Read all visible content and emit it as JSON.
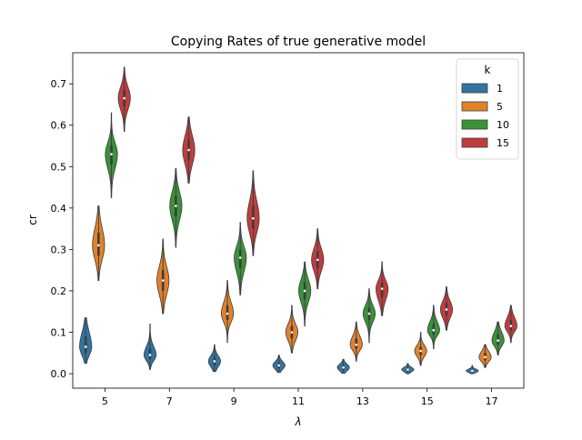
{
  "chart_data": {
    "type": "violin",
    "title": "Copying Rates of true generative model",
    "xlabel": "λ",
    "ylabel": "cr",
    "categories": [
      "5",
      "7",
      "9",
      "11",
      "13",
      "15",
      "17"
    ],
    "yticks": [
      0.0,
      0.1,
      0.2,
      0.3,
      0.4,
      0.5,
      0.6,
      0.7
    ],
    "ytick_labels": [
      "0.0",
      "0.1",
      "0.2",
      "0.3",
      "0.4",
      "0.5",
      "0.6",
      "0.7"
    ],
    "ylim": [
      -0.035,
      0.775
    ],
    "legend": {
      "title": "k",
      "position": "top-right"
    },
    "series": [
      {
        "name": "1",
        "color": "#3274a1",
        "values": [
          {
            "min": 0.025,
            "q1": 0.05,
            "median": 0.065,
            "q3": 0.09,
            "max": 0.135
          },
          {
            "min": 0.01,
            "q1": 0.035,
            "median": 0.045,
            "q3": 0.06,
            "max": 0.12
          },
          {
            "min": 0.005,
            "q1": 0.02,
            "median": 0.03,
            "q3": 0.04,
            "max": 0.07
          },
          {
            "min": 0.003,
            "q1": 0.013,
            "median": 0.02,
            "q3": 0.027,
            "max": 0.045
          },
          {
            "min": 0.001,
            "q1": 0.009,
            "median": 0.015,
            "q3": 0.021,
            "max": 0.035
          },
          {
            "min": 0.0,
            "q1": 0.006,
            "median": 0.01,
            "q3": 0.014,
            "max": 0.025
          },
          {
            "min": 0.0,
            "q1": 0.004,
            "median": 0.007,
            "q3": 0.01,
            "max": 0.02
          }
        ]
      },
      {
        "name": "5",
        "color": "#e1812c",
        "values": [
          {
            "min": 0.225,
            "q1": 0.285,
            "median": 0.31,
            "q3": 0.34,
            "max": 0.405
          },
          {
            "min": 0.145,
            "q1": 0.2,
            "median": 0.225,
            "q3": 0.25,
            "max": 0.325
          },
          {
            "min": 0.075,
            "q1": 0.13,
            "median": 0.145,
            "q3": 0.165,
            "max": 0.225
          },
          {
            "min": 0.05,
            "q1": 0.085,
            "median": 0.1,
            "q3": 0.115,
            "max": 0.165
          },
          {
            "min": 0.03,
            "q1": 0.06,
            "median": 0.07,
            "q3": 0.085,
            "max": 0.125
          },
          {
            "min": 0.02,
            "q1": 0.045,
            "median": 0.055,
            "q3": 0.065,
            "max": 0.1
          },
          {
            "min": 0.015,
            "q1": 0.032,
            "median": 0.04,
            "q3": 0.05,
            "max": 0.07
          }
        ]
      },
      {
        "name": "10",
        "color": "#3a923a",
        "values": [
          {
            "min": 0.425,
            "q1": 0.505,
            "median": 0.53,
            "q3": 0.55,
            "max": 0.63
          },
          {
            "min": 0.305,
            "q1": 0.38,
            "median": 0.405,
            "q3": 0.43,
            "max": 0.495
          },
          {
            "min": 0.19,
            "q1": 0.255,
            "median": 0.28,
            "q3": 0.3,
            "max": 0.365
          },
          {
            "min": 0.115,
            "q1": 0.18,
            "median": 0.2,
            "q3": 0.22,
            "max": 0.27
          },
          {
            "min": 0.075,
            "q1": 0.13,
            "median": 0.145,
            "q3": 0.16,
            "max": 0.205
          },
          {
            "min": 0.06,
            "q1": 0.095,
            "median": 0.105,
            "q3": 0.12,
            "max": 0.165
          },
          {
            "min": 0.045,
            "q1": 0.07,
            "median": 0.08,
            "q3": 0.095,
            "max": 0.125
          }
        ]
      },
      {
        "name": "15",
        "color": "#c03d3e",
        "values": [
          {
            "min": 0.585,
            "q1": 0.645,
            "median": 0.665,
            "q3": 0.685,
            "max": 0.74
          },
          {
            "min": 0.46,
            "q1": 0.515,
            "median": 0.54,
            "q3": 0.565,
            "max": 0.62
          },
          {
            "min": 0.285,
            "q1": 0.35,
            "median": 0.375,
            "q3": 0.405,
            "max": 0.49
          },
          {
            "min": 0.205,
            "q1": 0.255,
            "median": 0.275,
            "q3": 0.295,
            "max": 0.35
          },
          {
            "min": 0.14,
            "q1": 0.185,
            "median": 0.205,
            "q3": 0.22,
            "max": 0.27
          },
          {
            "min": 0.105,
            "q1": 0.14,
            "median": 0.155,
            "q3": 0.17,
            "max": 0.21
          },
          {
            "min": 0.075,
            "q1": 0.105,
            "median": 0.115,
            "q3": 0.13,
            "max": 0.165
          }
        ]
      }
    ]
  }
}
